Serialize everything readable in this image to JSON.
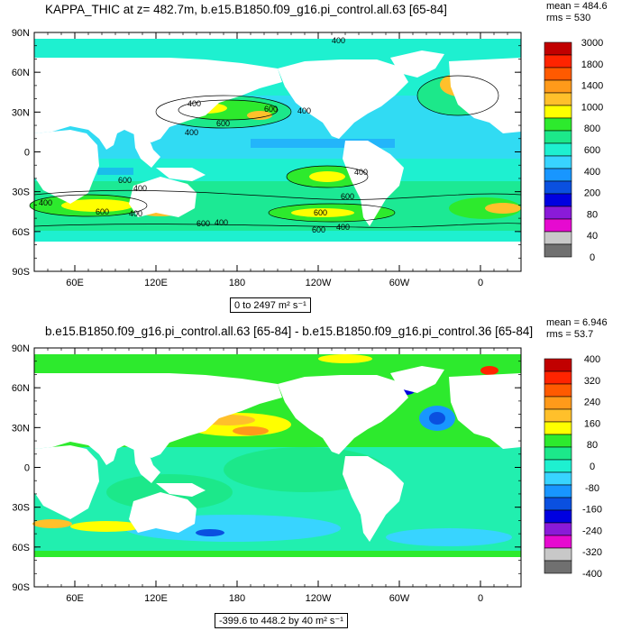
{
  "chart_data": [
    {
      "type": "heatmap",
      "title": "KAPPA_THIC at z= 482.7m, b.e15.B1850.f09_g16.pi_control.all.63 [65-84]",
      "stats": {
        "mean": "mean = 484.6",
        "rms": "rms = 530"
      },
      "xlabel": "",
      "ylabel": "",
      "x_ticks": [
        "60E",
        "120E",
        "180",
        "120W",
        "60W",
        "0"
      ],
      "x_tick_values": [
        60,
        120,
        180,
        240,
        300,
        360
      ],
      "xlim": [
        30,
        390
      ],
      "y_ticks": [
        "90N",
        "60N",
        "30N",
        "0",
        "30S",
        "60S",
        "90S"
      ],
      "y_tick_values": [
        90,
        60,
        30,
        0,
        -30,
        -60,
        -90
      ],
      "ylim": [
        -90,
        90
      ],
      "range_label": "0 to 2497 m² s⁻¹",
      "colorbar_labels": [
        "3000",
        "1800",
        "1400",
        "1000",
        "800",
        "600",
        "400",
        "200",
        "80",
        "40",
        "0"
      ],
      "colorbar_colors": [
        "#c10000",
        "#ff2400",
        "#ff5a00",
        "#ff9a1a",
        "#ffc02b",
        "#ffff00",
        "#2dea2d",
        "#1ce88a",
        "#1ef0d0",
        "#38d4ff",
        "#1896ff",
        "#0a50e0",
        "#0000e0",
        "#8a1ad8",
        "#e60ad0",
        "#c8c8c8",
        "#707070"
      ],
      "contour_labels": [
        "400",
        "600",
        "400",
        "600",
        "400",
        "400",
        "400",
        "600",
        "600",
        "400",
        "400",
        "400",
        "600",
        "400",
        "600",
        "400",
        "600",
        "600"
      ],
      "value_range": [
        0,
        2497
      ]
    },
    {
      "type": "heatmap",
      "title": "b.e15.B1850.f09_g16.pi_control.all.63 [65-84] - b.e15.B1850.f09_g16.pi_control.36 [65-84]",
      "stats": {
        "mean": "mean = 6.946",
        "rms": "rms = 53.7"
      },
      "xlabel": "",
      "ylabel": "",
      "x_ticks": [
        "60E",
        "120E",
        "180",
        "120W",
        "60W",
        "0"
      ],
      "x_tick_values": [
        60,
        120,
        180,
        240,
        300,
        360
      ],
      "xlim": [
        30,
        390
      ],
      "y_ticks": [
        "90N",
        "60N",
        "30N",
        "0",
        "30S",
        "60S",
        "90S"
      ],
      "y_tick_values": [
        90,
        60,
        30,
        0,
        -30,
        -60,
        -90
      ],
      "ylim": [
        -90,
        90
      ],
      "range_label": "-399.6 to 448.2 by 40 m² s⁻¹",
      "colorbar_labels": [
        "400",
        "320",
        "240",
        "160",
        "80",
        "0",
        "-80",
        "-160",
        "-240",
        "-320",
        "-400"
      ],
      "colorbar_colors": [
        "#c10000",
        "#ff2400",
        "#ff5a00",
        "#ff9a1a",
        "#ffc02b",
        "#ffff00",
        "#2dea2d",
        "#1ce88a",
        "#1ef0d0",
        "#38d4ff",
        "#1896ff",
        "#0a50e0",
        "#0000e0",
        "#8a1ad8",
        "#e60ad0",
        "#c8c8c8",
        "#707070"
      ],
      "value_range": [
        -399.6,
        448.2
      ],
      "contour_interval": 40
    }
  ]
}
